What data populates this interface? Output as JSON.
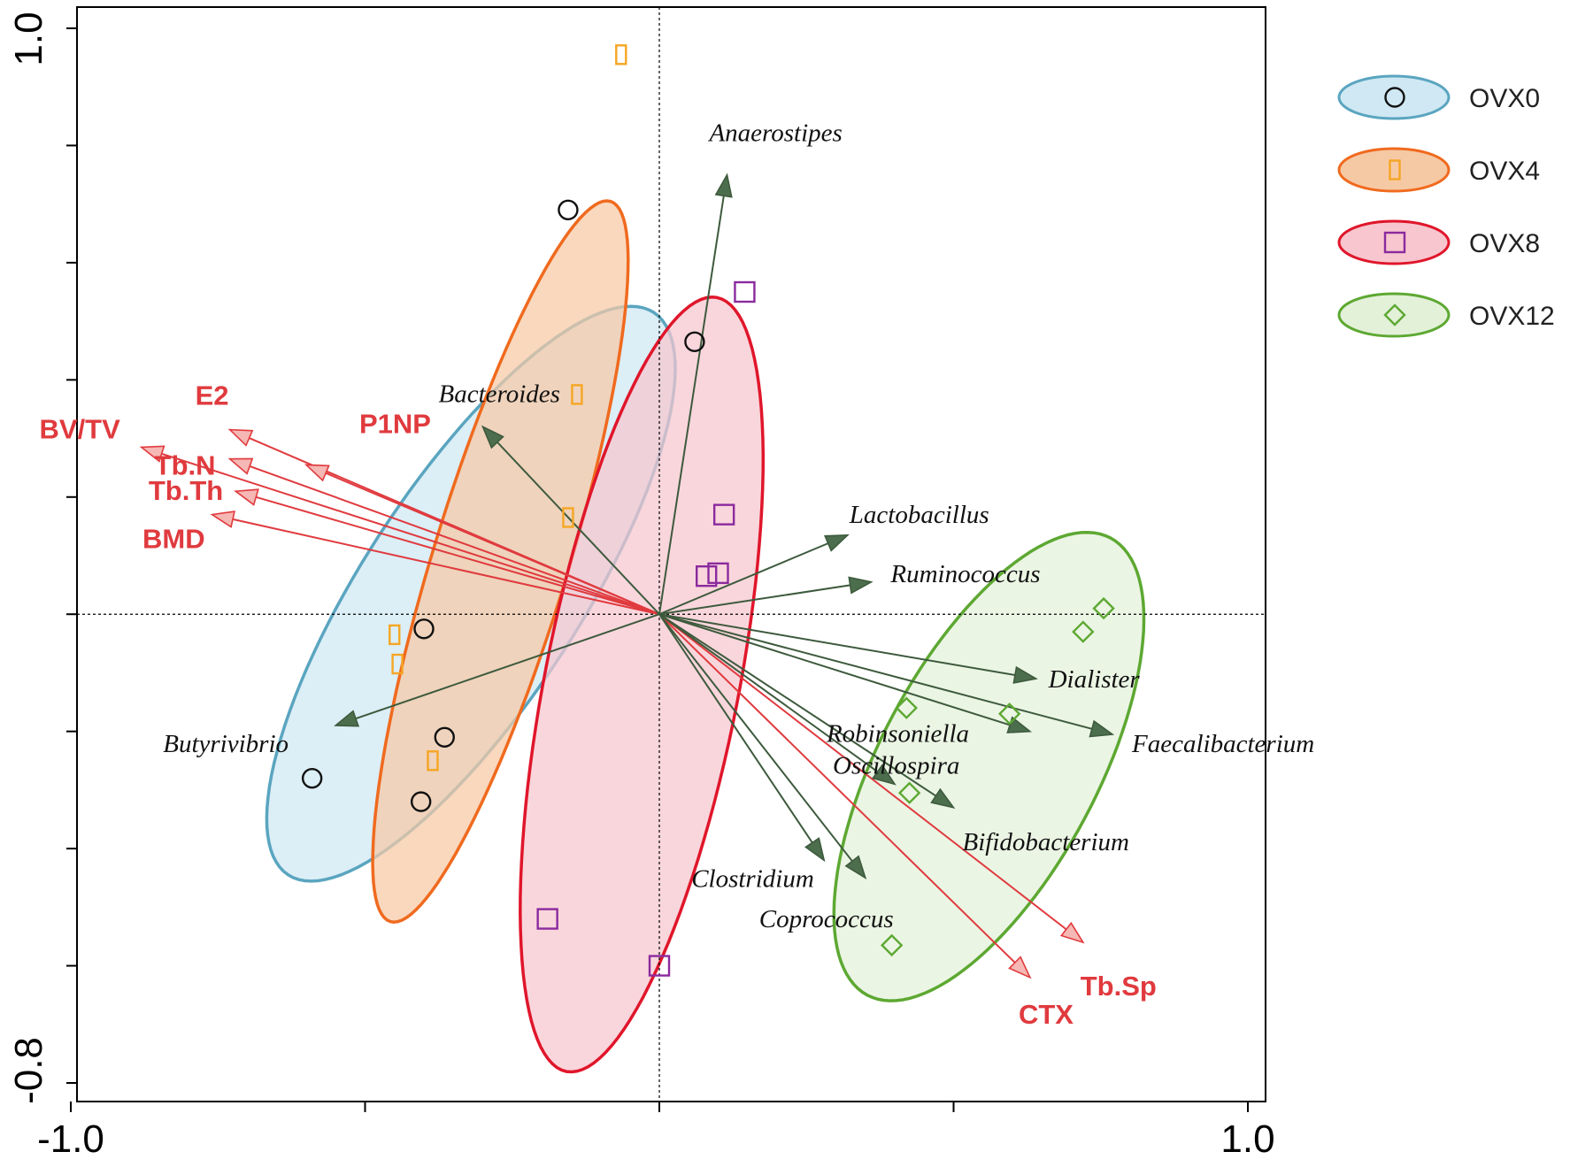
{
  "chart_data": {
    "type": "scatter",
    "xlim": [
      -1.0,
      1.0
    ],
    "ylim": [
      -0.8,
      1.0
    ],
    "x_tick_labels": [
      "-1.0",
      "1.0"
    ],
    "y_tick_labels": [
      "1.0",
      "-0.8"
    ],
    "colors": {
      "env_arrow": "#e03a3e",
      "species_arrow": "#3d5a3d",
      "species_head": "#4d6e4d"
    },
    "groups": [
      {
        "name": "OVX0",
        "marker": "circle",
        "marker_color": "#111111",
        "ellipse_stroke": "#5aa5c0",
        "ellipse_fill": "#cfe8f3",
        "ellipse": {
          "cx": -0.32,
          "cy": 0.035,
          "rx": 0.57,
          "ry": 0.185,
          "angle_deg": 57
        },
        "points": [
          [
            -0.155,
            0.69
          ],
          [
            0.06,
            0.465
          ],
          [
            -0.4,
            -0.025
          ],
          [
            -0.365,
            -0.21
          ],
          [
            -0.59,
            -0.28
          ],
          [
            -0.405,
            -0.32
          ]
        ]
      },
      {
        "name": "OVX4",
        "marker": "narrow-rectangle",
        "marker_color": "#f5a623",
        "ellipse_stroke": "#f06a1e",
        "ellipse_fill": "#f6c9a5",
        "ellipse": {
          "cx": -0.27,
          "cy": 0.09,
          "rx": 0.64,
          "ry": 0.115,
          "angle_deg": 73
        },
        "points": [
          [
            -0.065,
            0.955
          ],
          [
            -0.14,
            0.375
          ],
          [
            -0.155,
            0.165
          ],
          [
            -0.45,
            -0.035
          ],
          [
            -0.445,
            -0.085
          ],
          [
            -0.385,
            -0.25
          ]
        ]
      },
      {
        "name": "OVX8",
        "marker": "square",
        "marker_color": "#8b2a9e",
        "ellipse_stroke": "#e0162b",
        "ellipse_fill": "#f7c6cf",
        "ellipse": {
          "cx": -0.03,
          "cy": -0.12,
          "rx": 0.67,
          "ry": 0.165,
          "angle_deg": 79
        },
        "points": [
          [
            0.145,
            0.55
          ],
          [
            0.11,
            0.17
          ],
          [
            0.1,
            0.07
          ],
          [
            0.08,
            0.065
          ],
          [
            -0.19,
            -0.52
          ],
          [
            0.0,
            -0.6
          ]
        ]
      },
      {
        "name": "OVX12",
        "marker": "diamond",
        "marker_color": "#5da832",
        "ellipse_stroke": "#5da832",
        "ellipse_fill": "#e3f1d9",
        "ellipse": {
          "cx": 0.56,
          "cy": -0.26,
          "rx": 0.44,
          "ry": 0.185,
          "angle_deg": 62
        },
        "points": [
          [
            0.755,
            0.01
          ],
          [
            0.72,
            -0.03
          ],
          [
            0.595,
            -0.17
          ],
          [
            0.42,
            -0.16
          ],
          [
            0.425,
            -0.305
          ],
          [
            0.395,
            -0.565
          ]
        ]
      }
    ],
    "env_arrows": [
      {
        "label": "E2",
        "x": -0.73,
        "y": 0.315
      },
      {
        "label": "BV/TV",
        "x": -0.88,
        "y": 0.285
      },
      {
        "label": "P1NP",
        "x": -0.6,
        "y": 0.255
      },
      {
        "label": "Tb.N",
        "x": -0.73,
        "y": 0.265
      },
      {
        "label": "Tb.Th",
        "x": -0.72,
        "y": 0.21
      },
      {
        "label": "BMD",
        "x": -0.76,
        "y": 0.17
      },
      {
        "label": "CTX",
        "x": 0.63,
        "y": -0.62
      },
      {
        "label": "Tb.Sp",
        "x": 0.72,
        "y": -0.56
      }
    ],
    "species_arrows": [
      {
        "label": "Anaerostipes",
        "x": 0.115,
        "y": 0.75
      },
      {
        "label": "Bacteroides",
        "x": -0.3,
        "y": 0.32
      },
      {
        "label": "Lactobacillus",
        "x": 0.32,
        "y": 0.135
      },
      {
        "label": "Ruminococcus",
        "x": 0.36,
        "y": 0.055
      },
      {
        "label": "Dialister",
        "x": 0.64,
        "y": -0.11
      },
      {
        "label": "Faecalibacterium",
        "x": 0.77,
        "y": -0.205
      },
      {
        "label": "Robinsoniella",
        "x": 0.63,
        "y": -0.2
      },
      {
        "label": "Oscillospira",
        "x": 0.4,
        "y": -0.29
      },
      {
        "label": "Bifidobacterium",
        "x": 0.5,
        "y": -0.33
      },
      {
        "label": "Clostridium",
        "x": 0.28,
        "y": -0.42
      },
      {
        "label": "Coprococcus",
        "x": 0.35,
        "y": -0.45
      },
      {
        "label": "Butyrivibrio",
        "x": -0.55,
        "y": -0.19
      }
    ]
  }
}
